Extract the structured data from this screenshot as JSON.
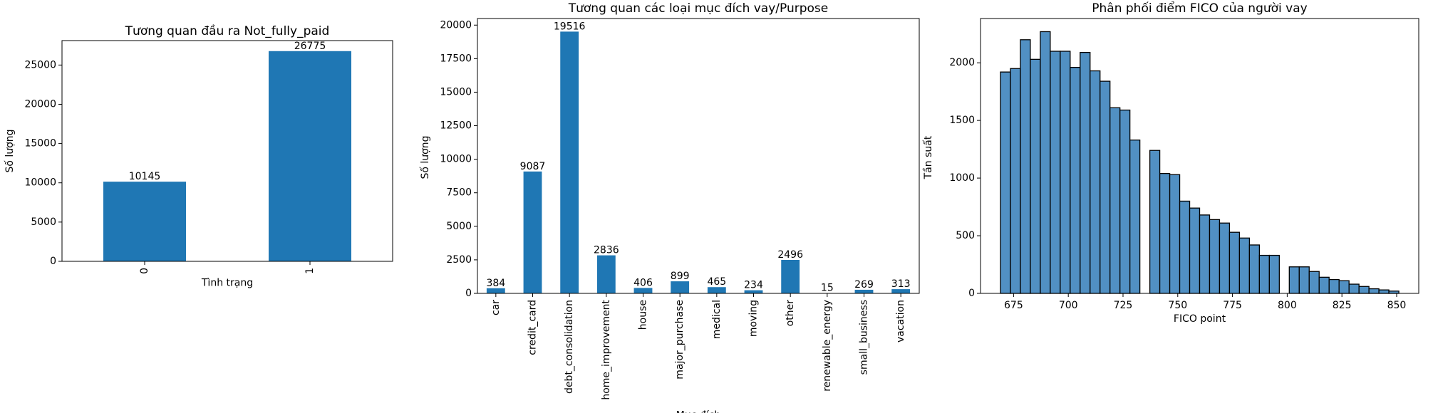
{
  "chart_data": [
    {
      "type": "bar",
      "title": "Tương quan đầu ra Not_fully_paid",
      "xlabel": "Tình trạng",
      "ylabel": "Số lượng",
      "categories": [
        "0",
        "1"
      ],
      "values": [
        10145,
        26775
      ],
      "color": "#1f77b4",
      "ylim": [
        0,
        28114
      ],
      "yticks": [
        0,
        5000,
        10000,
        15000,
        20000,
        25000
      ]
    },
    {
      "type": "bar",
      "title": "Tương quan các loại mục đích vay/Purpose",
      "xlabel": "Mục đích",
      "ylabel": "Số lượng",
      "categories": [
        "car",
        "credit_card",
        "debt_consolidation",
        "home_improvement",
        "house",
        "major_purchase",
        "medical",
        "moving",
        "other",
        "renewable_energy",
        "small_business",
        "vacation"
      ],
      "values": [
        384,
        9087,
        19516,
        2836,
        406,
        899,
        465,
        234,
        2496,
        15,
        269,
        313
      ],
      "color": "#1f77b4",
      "ylim": [
        0,
        20492
      ],
      "yticks": [
        0,
        2500,
        5000,
        7500,
        10000,
        12500,
        15000,
        17500,
        20000
      ]
    },
    {
      "type": "histogram",
      "title": "Phân phối điểm FICO của người vay",
      "xlabel": "FICO point",
      "ylabel": "Tần suất",
      "bins": [
        669,
        673.55,
        678.1,
        682.65,
        687.2,
        691.75,
        696.3,
        700.85,
        705.4,
        709.95,
        714.5,
        719.05,
        723.6,
        728.15,
        732.7,
        737.25,
        741.8,
        746.35,
        750.9,
        755.45,
        760,
        764.55,
        769.1,
        773.65,
        778.2,
        782.75,
        787.3,
        791.85,
        796.4,
        800.95,
        805.5,
        810.05,
        814.6,
        819.15,
        823.7,
        828.25,
        832.8,
        837.35,
        841.9,
        846.45,
        851
      ],
      "counts": [
        1920,
        1950,
        2200,
        2030,
        2270,
        2100,
        2100,
        1960,
        2090,
        1930,
        1840,
        1610,
        1590,
        1330,
        0,
        1240,
        1040,
        1030,
        800,
        740,
        680,
        640,
        610,
        530,
        480,
        420,
        330,
        330,
        0,
        230,
        230,
        190,
        140,
        120,
        110,
        80,
        60,
        40,
        30,
        20
      ],
      "color": "#5190c3",
      "edgecolor": "#000000",
      "xlim": [
        659.9,
        860.1
      ],
      "xticks": [
        675,
        700,
        725,
        750,
        775,
        800,
        825,
        850
      ],
      "ylim": [
        0,
        2384
      ],
      "yticks": [
        0,
        500,
        1000,
        1500,
        2000
      ]
    }
  ]
}
